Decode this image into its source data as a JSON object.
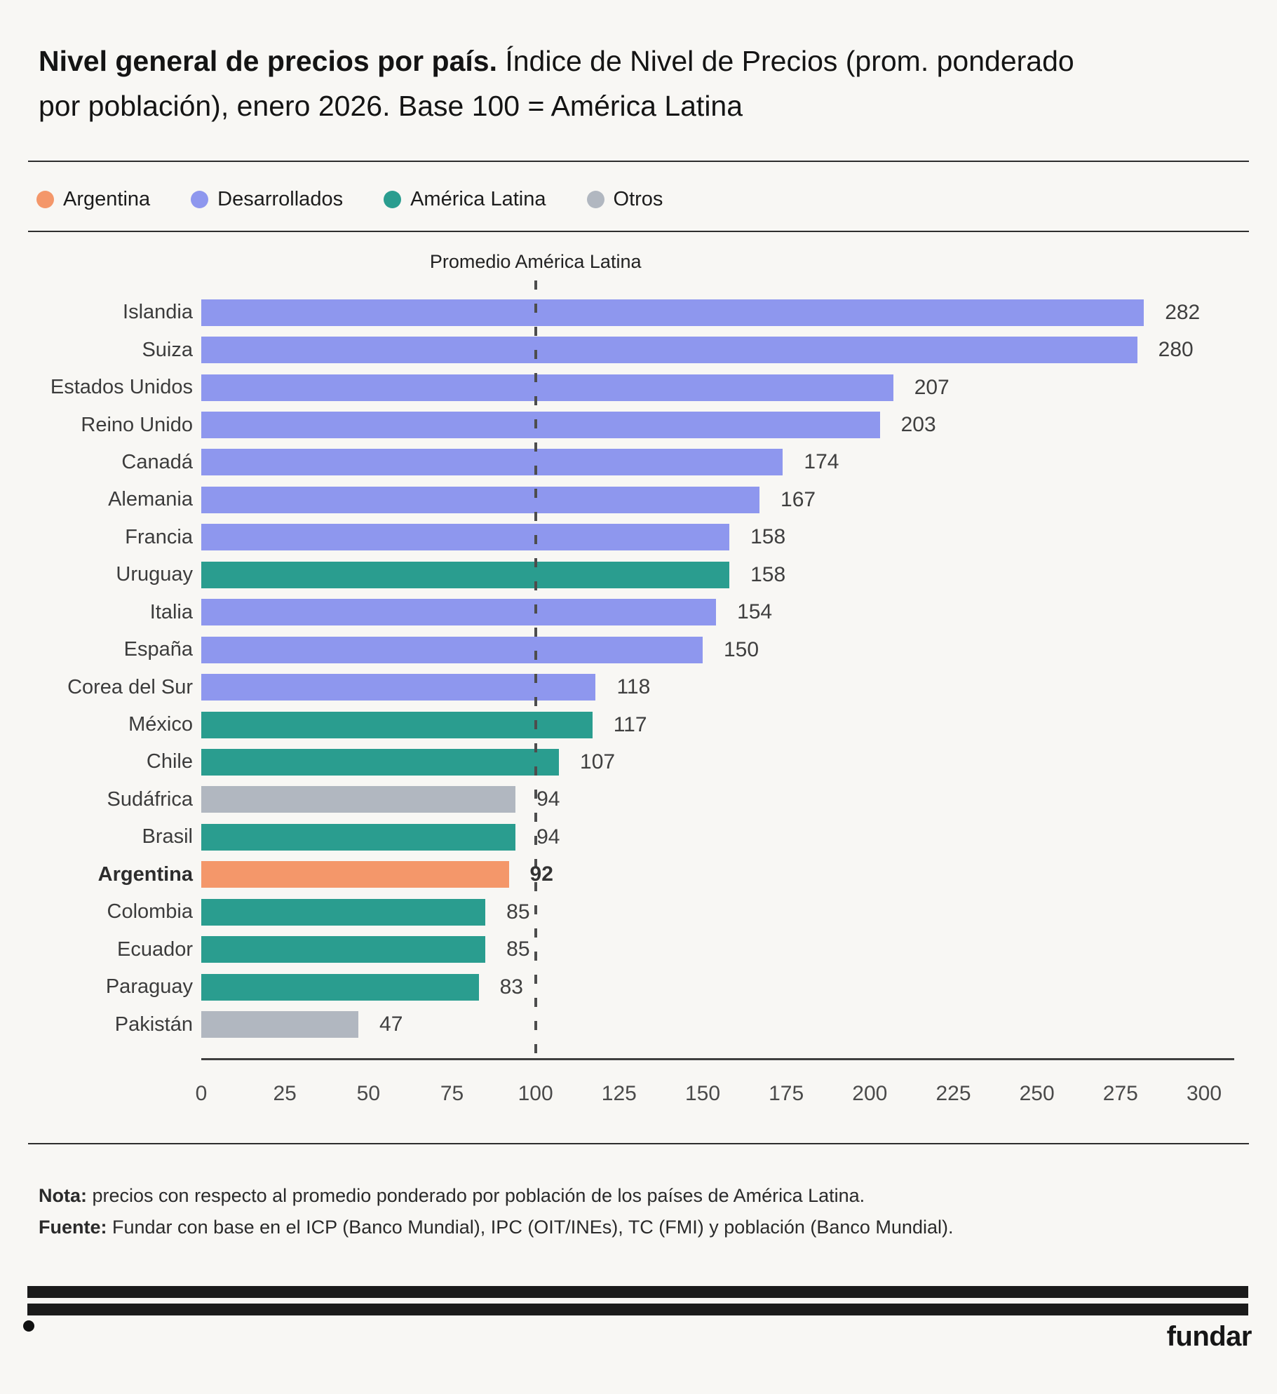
{
  "title": {
    "bold": "Nivel general de precios por país.",
    "regular": " Índice de Nivel de Precios (prom. ponderado por población), enero 2026. Base 100 = América Latina"
  },
  "legend": [
    {
      "label": "Argentina",
      "color": "#f4976a"
    },
    {
      "label": "Desarrollados",
      "color": "#8e97ee"
    },
    {
      "label": "América Latina",
      "color": "#2a9d8f"
    },
    {
      "label": "Otros",
      "color": "#b1b7c0"
    }
  ],
  "chart_data": {
    "type": "bar",
    "orientation": "horizontal",
    "title": "Nivel general de precios por país. Índice de Nivel de Precios (prom. ponderado por población), enero 2026. Base 100 = América Latina",
    "xlabel": "",
    "ylabel": "",
    "xlim": [
      0,
      300
    ],
    "x_ticks": [
      0,
      25,
      50,
      75,
      100,
      125,
      150,
      175,
      200,
      225,
      250,
      275,
      300
    ],
    "grid": false,
    "legend_position": "top",
    "reference_line": {
      "value": 100,
      "label": "Promedio América Latina"
    },
    "group_colors": {
      "Argentina": "#f4976a",
      "Desarrollados": "#8e97ee",
      "América Latina": "#2a9d8f",
      "Otros": "#b1b7c0"
    },
    "bars": [
      {
        "category": "Islandia",
        "value": 282,
        "group": "Desarrollados"
      },
      {
        "category": "Suiza",
        "value": 280,
        "group": "Desarrollados"
      },
      {
        "category": "Estados Unidos",
        "value": 207,
        "group": "Desarrollados"
      },
      {
        "category": "Reino Unido",
        "value": 203,
        "group": "Desarrollados"
      },
      {
        "category": "Canadá",
        "value": 174,
        "group": "Desarrollados"
      },
      {
        "category": "Alemania",
        "value": 167,
        "group": "Desarrollados"
      },
      {
        "category": "Francia",
        "value": 158,
        "group": "Desarrollados"
      },
      {
        "category": "Uruguay",
        "value": 158,
        "group": "América Latina"
      },
      {
        "category": "Italia",
        "value": 154,
        "group": "Desarrollados"
      },
      {
        "category": "España",
        "value": 150,
        "group": "Desarrollados"
      },
      {
        "category": "Corea del Sur",
        "value": 118,
        "group": "Desarrollados"
      },
      {
        "category": "México",
        "value": 117,
        "group": "América Latina"
      },
      {
        "category": "Chile",
        "value": 107,
        "group": "América Latina"
      },
      {
        "category": "Sudáfrica",
        "value": 94,
        "group": "Otros"
      },
      {
        "category": "Brasil",
        "value": 94,
        "group": "América Latina"
      },
      {
        "category": "Argentina",
        "value": 92,
        "group": "Argentina",
        "emphasis": true
      },
      {
        "category": "Colombia",
        "value": 85,
        "group": "América Latina"
      },
      {
        "category": "Ecuador",
        "value": 85,
        "group": "América Latina"
      },
      {
        "category": "Paraguay",
        "value": 83,
        "group": "América Latina"
      },
      {
        "category": "Pakistán",
        "value": 47,
        "group": "Otros"
      }
    ]
  },
  "footer": {
    "nota_label": "Nota:",
    "nota_text": " precios con respecto al promedio ponderado por población de los países de América Latina.",
    "fuente_label": "Fuente:",
    "fuente_text": " Fundar con base en el ICP (Banco Mundial), IPC (OIT/INEs), TC (FMI) y población (Banco Mundial).",
    "logo": "fundar"
  }
}
